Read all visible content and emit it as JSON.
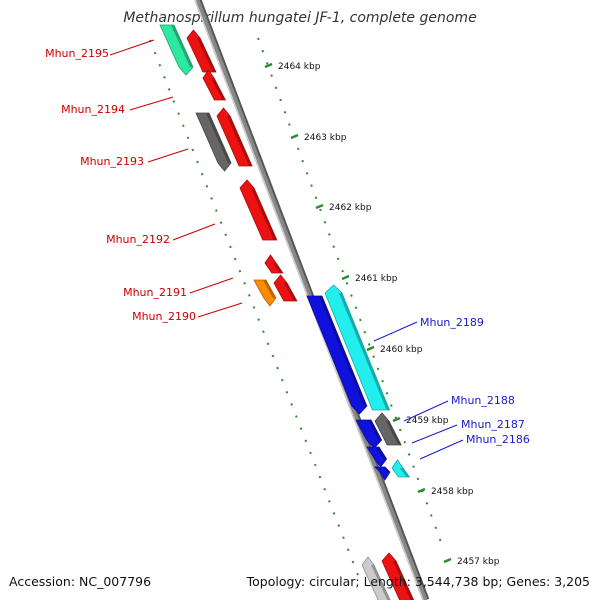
{
  "title": "Methanospirillum hungatei JF-1, complete genome",
  "footer": {
    "accession": "Accession: NC_007796",
    "topology": "Topology: circular; Length: 3,544,738 bp; Genes: 3,205"
  },
  "colors": {
    "backbone": "#888888",
    "tick": "#2e8b2e",
    "label_left": "#cc0000",
    "label_right": "#1a1acc"
  },
  "kbp_ticks": [
    "2464 kbp",
    "2463 kbp",
    "2462 kbp",
    "2461 kbp",
    "2460 kbp",
    "2459 kbp",
    "2458 kbp",
    "2457 kbp"
  ],
  "left_labels": [
    "Mhun_2195",
    "Mhun_2194",
    "Mhun_2193",
    "Mhun_2192",
    "Mhun_2191",
    "Mhun_2190"
  ],
  "right_labels": [
    "Mhun_2189",
    "Mhun_2188",
    "Mhun_2187",
    "Mhun_2186"
  ],
  "genes": [
    {
      "color": "#2ee8a0"
    },
    {
      "color": "#ee1111"
    },
    {
      "color": "#ee1111"
    },
    {
      "color": "#666666"
    },
    {
      "color": "#ee1111"
    },
    {
      "color": "#ee1111"
    },
    {
      "color": "#ee1111"
    },
    {
      "color": "#ee1111"
    },
    {
      "color": "#ff8c00"
    },
    {
      "color": "#1111dd"
    },
    {
      "color": "#22eeee"
    },
    {
      "color": "#1111dd"
    },
    {
      "color": "#666666"
    },
    {
      "color": "#1111dd"
    },
    {
      "color": "#1111dd"
    },
    {
      "color": "#22eeee"
    },
    {
      "color": "#cccccc"
    },
    {
      "color": "#ee1111"
    }
  ]
}
